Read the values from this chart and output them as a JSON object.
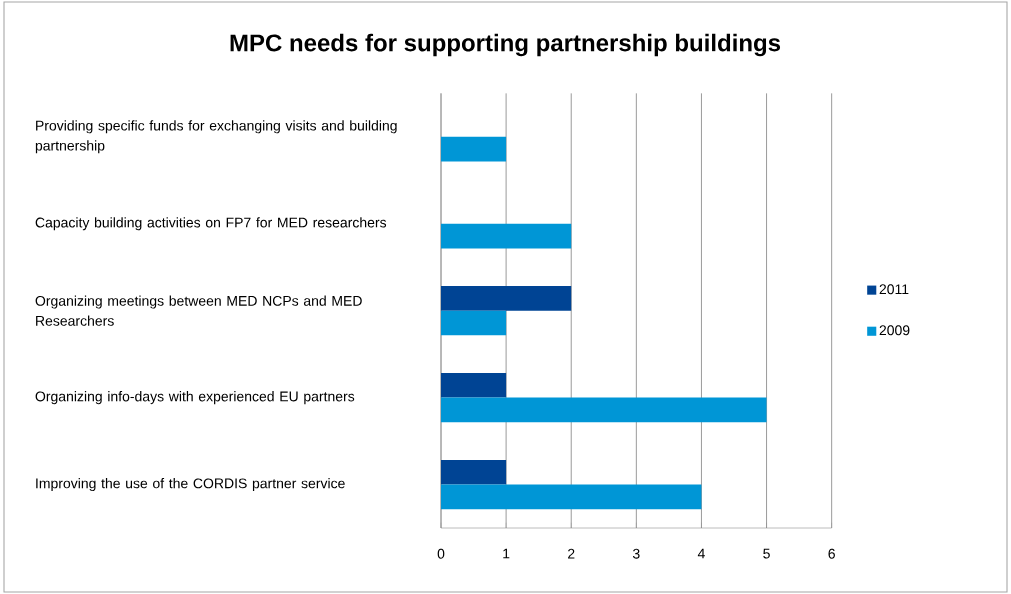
{
  "chart_data": {
    "type": "bar",
    "orientation": "horizontal",
    "title": "MPC needs for supporting partnership buildings",
    "categories": [
      "Providing specific funds for exchanging visits and building partnership",
      "Capacity building activities on FP7 for MED researchers",
      "Organizing meetings between MED NCPs and MED Researchers",
      "Organizing info-days with experienced EU partners",
      "Improving the use of the CORDIS partner service"
    ],
    "series": [
      {
        "name": "2011",
        "color": "#004494",
        "values": [
          null,
          null,
          2,
          1,
          1
        ]
      },
      {
        "name": "2009",
        "color": "#0096d6",
        "values": [
          1,
          2,
          1,
          5,
          4
        ]
      }
    ],
    "xlim": [
      0,
      6
    ],
    "xticks": [
      0,
      1,
      2,
      3,
      4,
      5,
      6
    ],
    "grid": "x",
    "legend": "right"
  }
}
